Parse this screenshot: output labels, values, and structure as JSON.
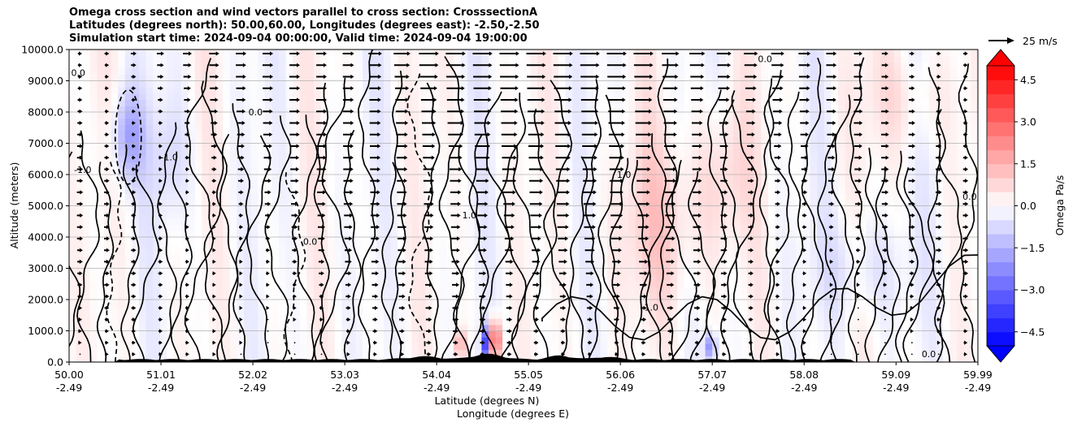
{
  "chart_data": {
    "type": "heatmap",
    "title_lines": [
      "Omega cross section and wind vectors parallel to cross section: CrosssectionA",
      "Latitudes (degrees north): 50.00,60.00, Longitudes (degrees east): -2.50,-2.50",
      "Simulation start time: 2024-09-04 00:00:00, Valid time: 2024-09-04 19:00:00"
    ],
    "ylabel": "Altitude (meters)",
    "xlabel_lines": [
      "Latitude (degrees N)",
      "Longitude (degrees E)"
    ],
    "ylim": [
      0,
      10000
    ],
    "y_ticks": [
      "0.0",
      "1000.0",
      "2000.0",
      "3000.0",
      "4000.0",
      "5000.0",
      "6000.0",
      "7000.0",
      "8000.0",
      "9000.0",
      "10000.0"
    ],
    "xlim": [
      50.0,
      59.99
    ],
    "x_ticks": [
      {
        "lat": "50.00",
        "lon": "-2.49"
      },
      {
        "lat": "51.01",
        "lon": "-2.49"
      },
      {
        "lat": "52.02",
        "lon": "-2.49"
      },
      {
        "lat": "53.03",
        "lon": "-2.49"
      },
      {
        "lat": "54.04",
        "lon": "-2.49"
      },
      {
        "lat": "55.05",
        "lon": "-2.49"
      },
      {
        "lat": "56.06",
        "lon": "-2.49"
      },
      {
        "lat": "57.07",
        "lon": "-2.49"
      },
      {
        "lat": "58.08",
        "lon": "-2.49"
      },
      {
        "lat": "59.09",
        "lon": "-2.49"
      },
      {
        "lat": "59.99",
        "lon": "-2.49"
      }
    ],
    "grid": "horizontal",
    "colorbar": {
      "label": "Omega Pa/s",
      "range": [
        -5.0,
        5.0
      ],
      "ticks": [
        "4.5",
        "3.0",
        "1.5",
        "0.0",
        "−1.5",
        "−3.0",
        "−4.5"
      ],
      "colormap": "bwr"
    },
    "vector_key": {
      "label": "25 m/s",
      "speed": 25
    },
    "contour_labels": [
      {
        "text": "-1.0",
        "lat": 51.1,
        "alt": 6450
      },
      {
        "text": "-1.0",
        "lat": 50.15,
        "alt": 6050
      },
      {
        "text": "0.0",
        "lat": 52.65,
        "alt": 3750
      },
      {
        "text": "0.0",
        "lat": 50.1,
        "alt": 9150
      },
      {
        "text": "0.0",
        "lat": 52.05,
        "alt": 7900
      },
      {
        "text": "1.0",
        "lat": 54.4,
        "alt": 4600
      },
      {
        "text": "1.0",
        "lat": 56.1,
        "alt": 5900
      },
      {
        "text": "0.0",
        "lat": 57.65,
        "alt": 9600
      },
      {
        "text": "1.0",
        "lat": 56.4,
        "alt": 1650
      },
      {
        "text": "0.0",
        "lat": 59.9,
        "alt": 5200
      },
      {
        "text": "0.0",
        "lat": 59.45,
        "alt": 150
      }
    ],
    "terrain_note": "black terrain silhouette along the bottom"
  },
  "colors": {
    "positive": "#ff0000",
    "negative": "#0000ff",
    "contour": "#000000",
    "terrain": "#000000"
  }
}
